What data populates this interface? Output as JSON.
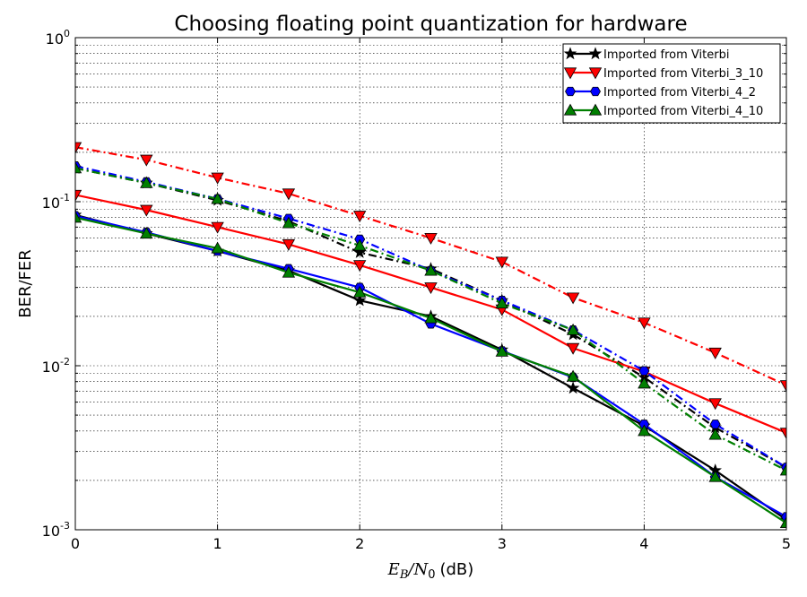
{
  "chart_data": {
    "type": "line",
    "title": "Choosing floating point quantization for hardware",
    "xlabel": {
      "math_var": "E",
      "math_sub1": "B",
      "math_sep": "/",
      "math_var2": "N",
      "math_sub2": "0",
      "unit": "(dB)"
    },
    "ylabel": "BER/FER",
    "xlim": [
      0,
      5
    ],
    "ylim": [
      0.001,
      1
    ],
    "yscale": "log",
    "grid": true,
    "legend_position": "top-right",
    "xticks": [
      {
        "value": 0,
        "label": "0"
      },
      {
        "value": 1,
        "label": "1"
      },
      {
        "value": 2,
        "label": "2"
      },
      {
        "value": 3,
        "label": "3"
      },
      {
        "value": 4,
        "label": "4"
      },
      {
        "value": 5,
        "label": "5"
      }
    ],
    "yticks": [
      {
        "value": 0.001,
        "base": "10",
        "exp": "-3"
      },
      {
        "value": 0.01,
        "base": "10",
        "exp": "-2"
      },
      {
        "value": 0.1,
        "base": "10",
        "exp": "-1"
      },
      {
        "value": 1,
        "base": "10",
        "exp": "0"
      }
    ],
    "x": [
      0,
      0.5,
      1,
      1.5,
      2,
      2.5,
      3,
      3.5,
      4,
      4.5,
      5
    ],
    "series": [
      {
        "name": "Imported from Viterbi",
        "color": "#000000",
        "marker": "star",
        "ber": [
          0.083,
          0.064,
          0.05,
          0.038,
          0.025,
          0.02,
          0.0125,
          0.0073,
          0.0043,
          0.0023,
          0.00115
        ],
        "fer": [
          0.16,
          0.13,
          0.102,
          0.076,
          0.049,
          0.039,
          0.025,
          0.0155,
          0.0085,
          0.0042,
          0.0024
        ]
      },
      {
        "name": "Imported from Viterbi_3_10",
        "color": "#ff0000",
        "marker": "triangle-down",
        "ber": [
          0.11,
          0.089,
          0.07,
          0.055,
          0.041,
          0.03,
          0.022,
          0.0128,
          0.0092,
          0.0059,
          0.0039
        ],
        "fer": [
          0.215,
          0.18,
          0.14,
          0.112,
          0.082,
          0.06,
          0.043,
          0.026,
          0.0183,
          0.012,
          0.0076
        ]
      },
      {
        "name": "Imported from Viterbi_4_2",
        "color": "#0000ff",
        "marker": "hexagon",
        "ber": [
          0.082,
          0.065,
          0.05,
          0.039,
          0.03,
          0.018,
          0.0123,
          0.0085,
          0.0044,
          0.0021,
          0.0012
        ],
        "fer": [
          0.165,
          0.132,
          0.104,
          0.079,
          0.059,
          0.038,
          0.025,
          0.0165,
          0.0093,
          0.0044,
          0.0024
        ]
      },
      {
        "name": "Imported from Viterbi_4_10",
        "color": "#007f00",
        "marker": "triangle-up",
        "ber": [
          0.08,
          0.064,
          0.052,
          0.037,
          0.028,
          0.0195,
          0.0122,
          0.0086,
          0.004,
          0.0021,
          0.0011
        ],
        "fer": [
          0.16,
          0.13,
          0.104,
          0.074,
          0.054,
          0.038,
          0.024,
          0.0165,
          0.0078,
          0.0038,
          0.0023
        ]
      }
    ]
  }
}
